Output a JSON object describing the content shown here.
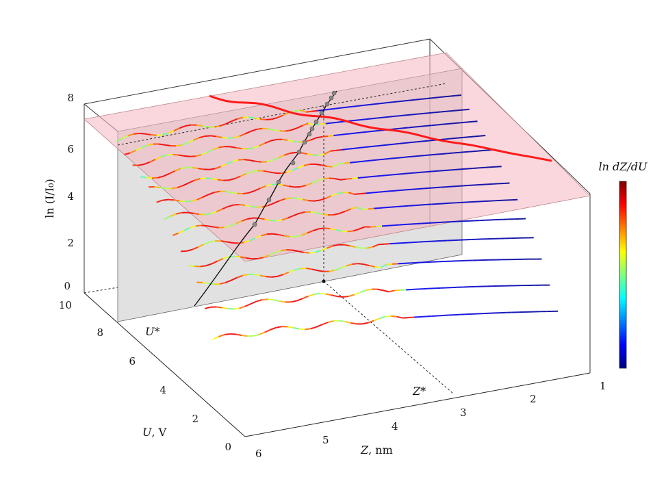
{
  "chart_data": {
    "type": "line",
    "title": "",
    "axes": {
      "x": {
        "label_var": "Z",
        "label_unit": ", nm",
        "ticks": [
          "1",
          "2",
          "3",
          "4",
          "5",
          "6"
        ],
        "range": [
          1,
          6
        ],
        "marker_label": "Z*"
      },
      "y": {
        "label_var": "U",
        "label_unit": ", V",
        "ticks": [
          "0",
          "2",
          "4",
          "6",
          "8",
          "10"
        ],
        "range": [
          0,
          10
        ],
        "marker_label": "U*"
      },
      "z": {
        "label": "ln (I/I₀)",
        "ticks": [
          "0",
          "2",
          "4",
          "6",
          "8"
        ],
        "range": [
          0,
          8
        ]
      }
    },
    "colorbar": {
      "label": "ln dZ/dU",
      "colormap": "jet"
    },
    "colors": {
      "plane": "#f4b6bf",
      "cut_plane": "#c8c8c8",
      "highlight": "#ff1a1a",
      "trajectory": "#111111"
    },
    "grid": false,
    "curves_description_values": [
      {
        "U": 2.0,
        "ln_I_start": 2.9,
        "ln_I_end": 1.4
      },
      {
        "U": 2.5,
        "ln_I_start": 3.8,
        "ln_I_end": 2.2
      },
      {
        "U": 3.0,
        "ln_I_start": 4.6,
        "ln_I_end": 3.0
      },
      {
        "U": 3.5,
        "ln_I_start": 5.1,
        "ln_I_end": 3.6
      },
      {
        "U": 4.0,
        "ln_I_start": 5.5,
        "ln_I_end": 4.1
      },
      {
        "U": 4.5,
        "ln_I_start": 5.9,
        "ln_I_end": 4.6
      },
      {
        "U": 5.0,
        "ln_I_start": 6.2,
        "ln_I_end": 5.0
      },
      {
        "U": 5.5,
        "ln_I_start": 6.5,
        "ln_I_end": 5.4
      },
      {
        "U": 6.0,
        "ln_I_start": 6.8,
        "ln_I_end": 5.8
      },
      {
        "U": 6.5,
        "ln_I_start": 7.0,
        "ln_I_end": 6.1
      },
      {
        "U": 7.0,
        "ln_I_start": 7.3,
        "ln_I_end": 6.4
      },
      {
        "U": 7.5,
        "ln_I_start": 7.5,
        "ln_I_end": 6.6
      },
      {
        "U": 8.0,
        "ln_I_start": 7.7,
        "ln_I_end": 6.9
      }
    ]
  }
}
